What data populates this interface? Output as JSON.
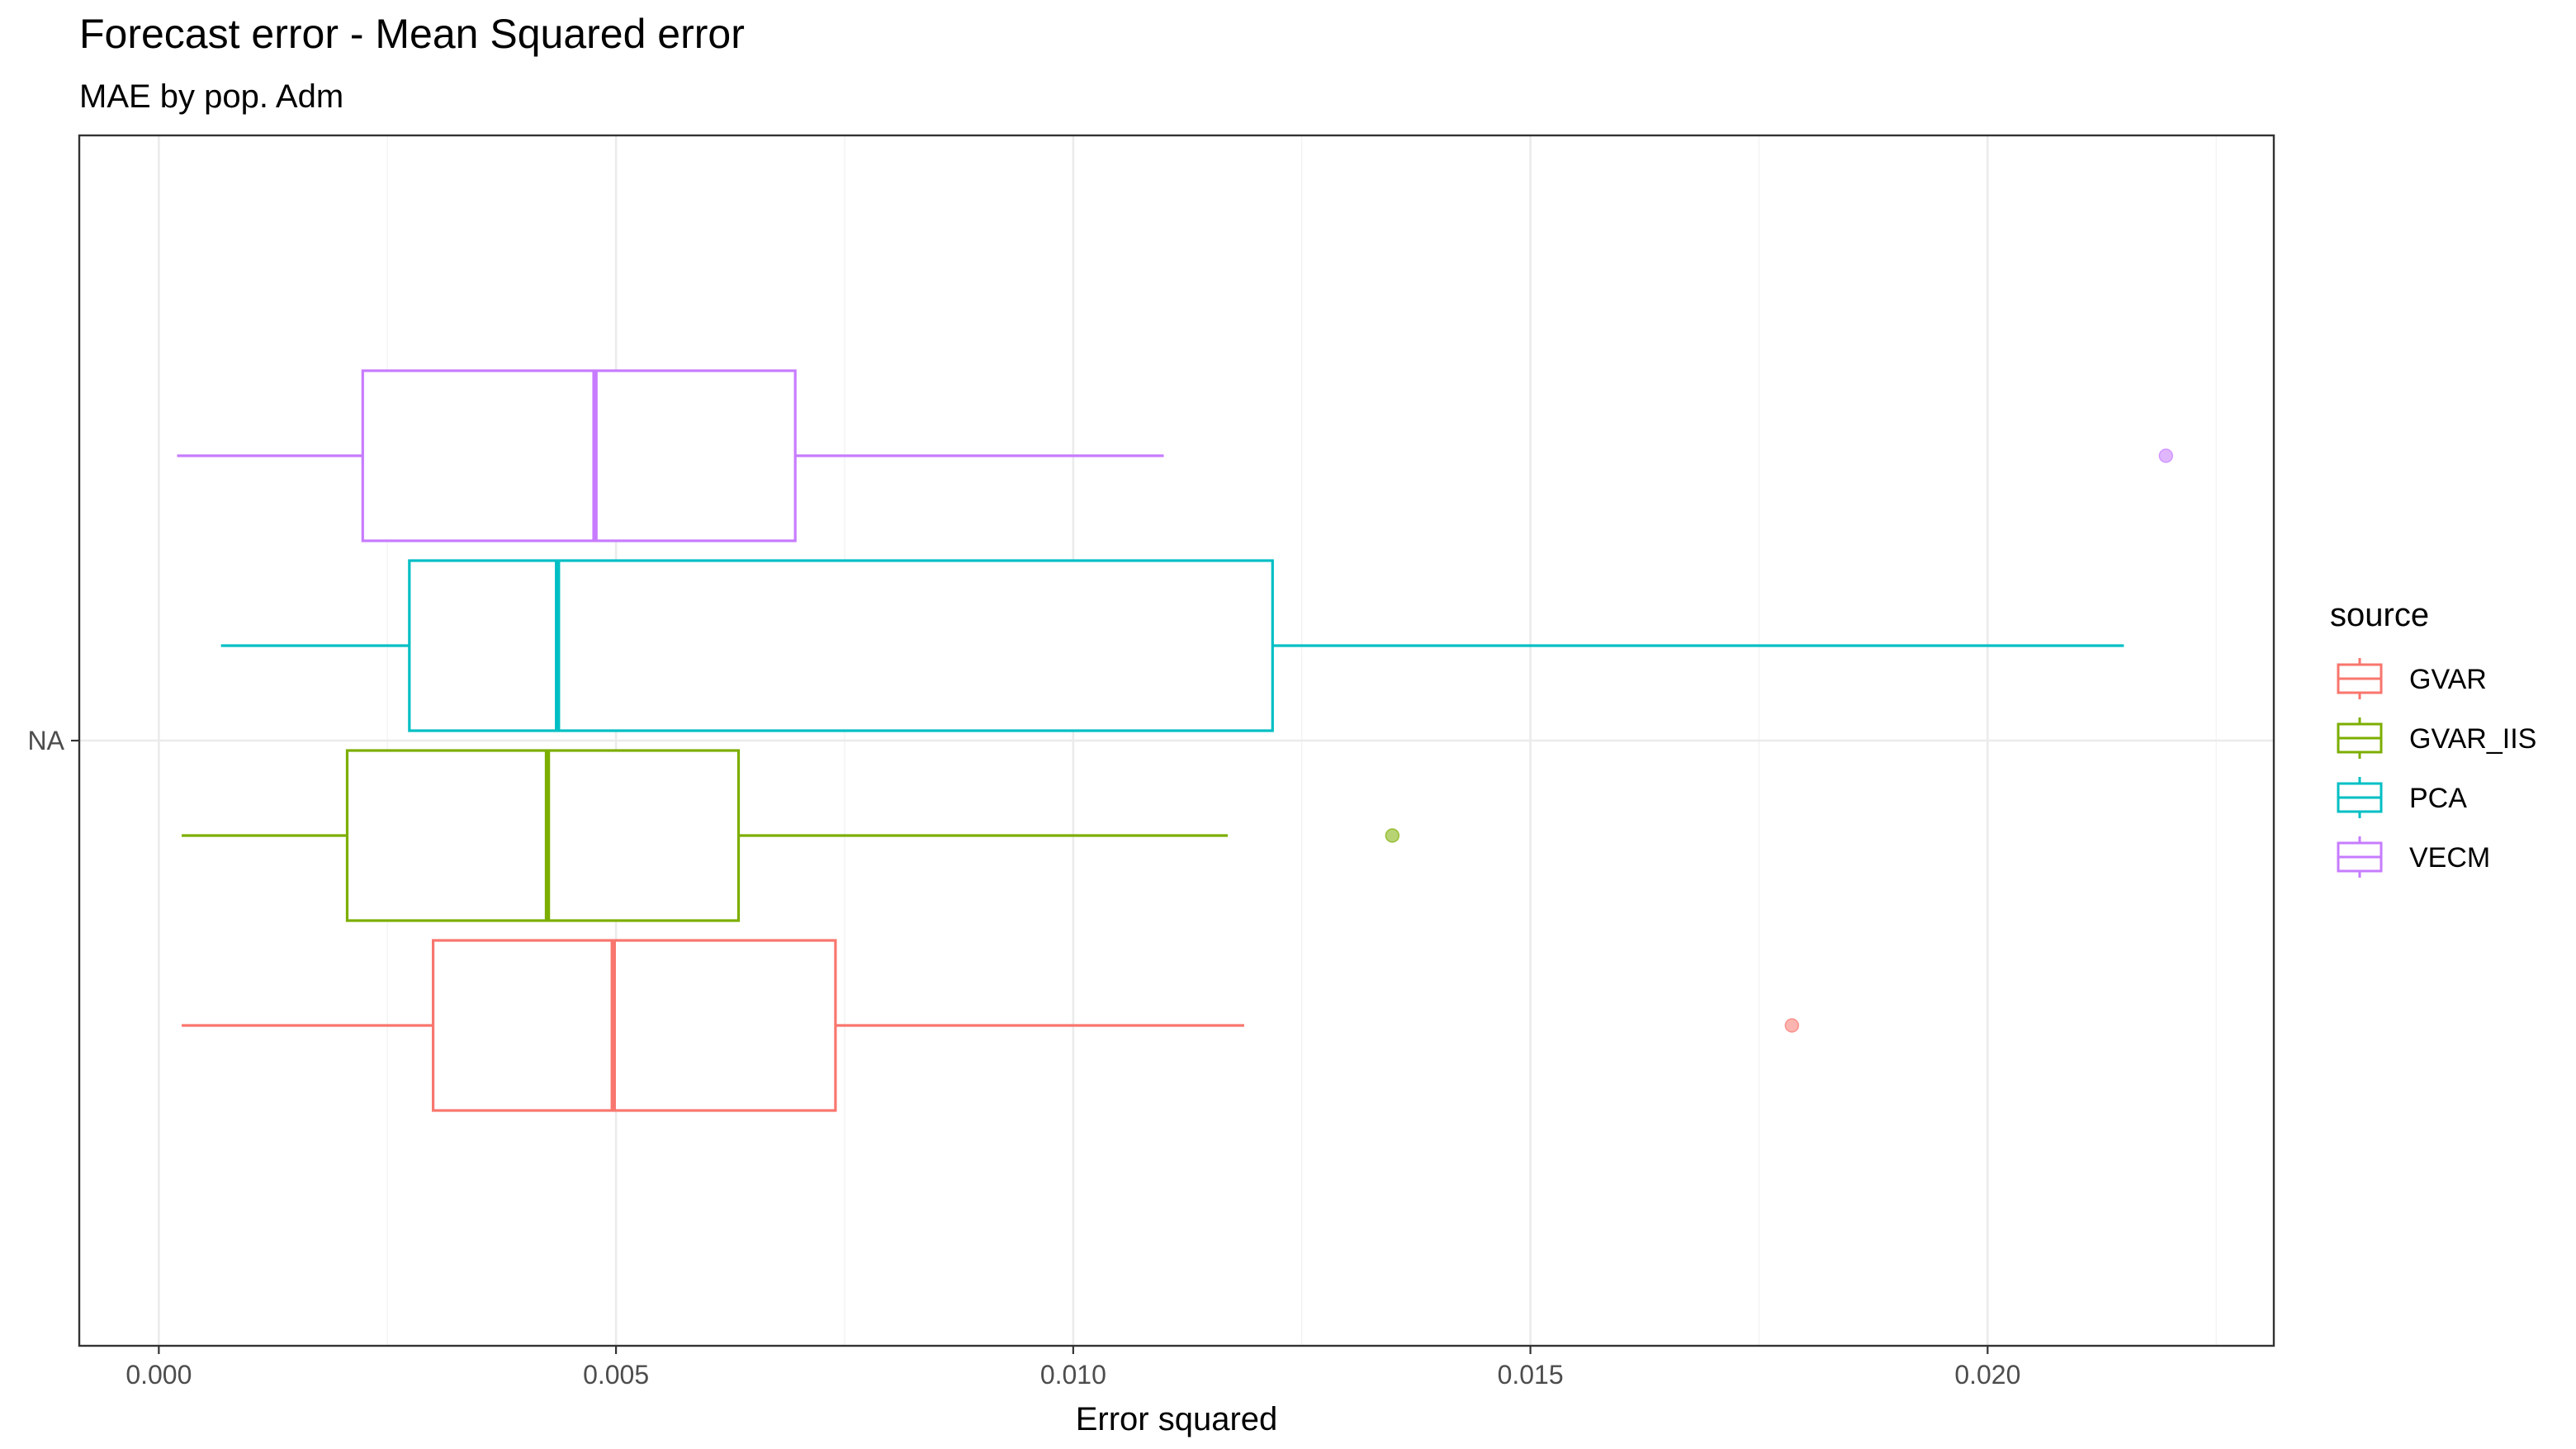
{
  "chart_data": {
    "type": "boxplot",
    "orientation": "horizontal",
    "title": "Forecast error - Mean Squared error",
    "subtitle": "MAE by pop. Adm",
    "xlabel": "Error squared",
    "ylabel": "",
    "y_categories": [
      "NA"
    ],
    "xlim": [
      -0.00087,
      0.02313
    ],
    "x_ticks": [
      0.0,
      0.005,
      0.01,
      0.015,
      0.02
    ],
    "x_tick_labels": [
      "0.000",
      "0.005",
      "0.010",
      "0.015",
      "0.020"
    ],
    "grid": true,
    "legend": {
      "title": "source",
      "position": "right"
    },
    "series": [
      {
        "name": "GVAR",
        "color": "#F8766D",
        "whisker_low": 0.00025,
        "q1": 0.003,
        "median": 0.00497,
        "q3": 0.0074,
        "whisker_high": 0.01187,
        "outliers": [
          0.01786
        ]
      },
      {
        "name": "GVAR_IIS",
        "color": "#7CAE00",
        "whisker_low": 0.00025,
        "q1": 0.00206,
        "median": 0.00425,
        "q3": 0.00634,
        "whisker_high": 0.01169,
        "outliers": [
          0.01349
        ]
      },
      {
        "name": "PCA",
        "color": "#00BFC4",
        "whisker_low": 0.00068,
        "q1": 0.00274,
        "median": 0.00436,
        "q3": 0.01218,
        "whisker_high": 0.02149,
        "outliers": []
      },
      {
        "name": "VECM",
        "color": "#C77CFF",
        "whisker_low": 0.0002,
        "q1": 0.00223,
        "median": 0.00477,
        "q3": 0.00696,
        "whisker_high": 0.01099,
        "outliers": [
          0.02195
        ]
      }
    ]
  }
}
